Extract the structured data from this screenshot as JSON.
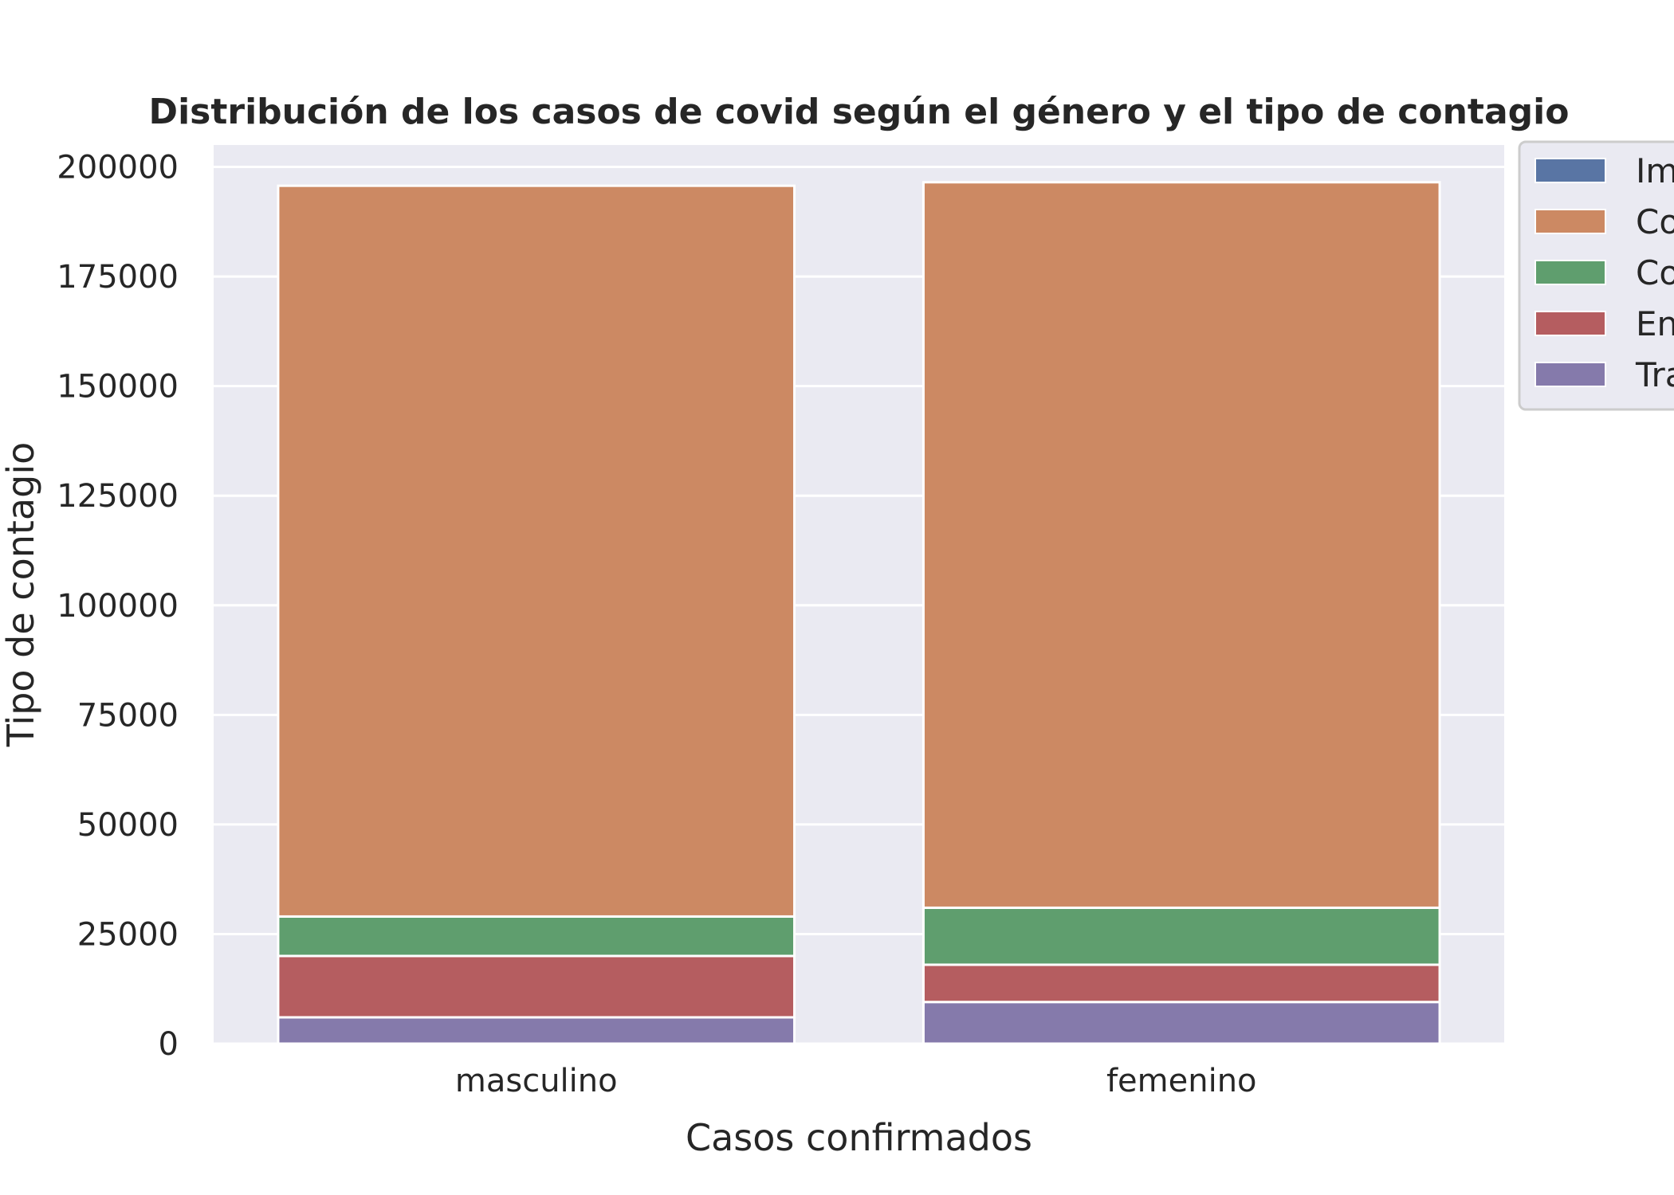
{
  "chart_data": {
    "type": "bar",
    "stacked": true,
    "title": "Distribución de los casos de covid según el género y el tipo de contagio",
    "xlabel": "Casos confirmados",
    "ylabel": "Tipo de contagio",
    "categories": [
      "masculino",
      "femenino"
    ],
    "ylim": [
      0,
      205000
    ],
    "yticks": [
      0,
      25000,
      50000,
      75000,
      100000,
      125000,
      150000,
      175000,
      200000
    ],
    "grid": true,
    "legend_position": "top-right, outside plot",
    "stack_order": [
      "Tra",
      "En",
      "Co",
      "Co"
    ],
    "series": [
      {
        "name": "Im",
        "color": "#5975a4",
        "values": [
          0,
          0
        ]
      },
      {
        "name": "Co",
        "color": "#cc8963",
        "values": [
          166700,
          165500
        ]
      },
      {
        "name": "Co",
        "color": "#5f9e6e",
        "values": [
          9000,
          13000
        ]
      },
      {
        "name": "En",
        "color": "#b55d60",
        "values": [
          14000,
          8500
        ]
      },
      {
        "name": "Tra",
        "color": "#857aab",
        "values": [
          6000,
          9500
        ]
      }
    ]
  }
}
